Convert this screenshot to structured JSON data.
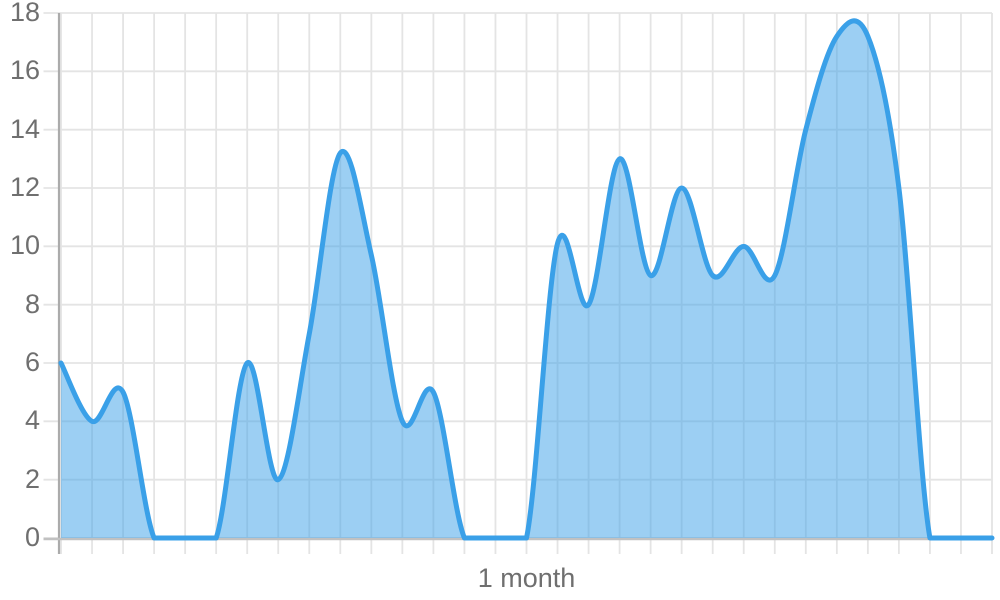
{
  "chart_data": {
    "type": "area",
    "spline": true,
    "title": "",
    "xlabel": "1 month",
    "ylabel": "",
    "x": [
      0,
      1,
      2,
      3,
      4,
      5,
      6,
      7,
      8,
      9,
      10,
      11,
      12,
      13,
      14,
      15,
      16,
      17,
      18,
      19,
      20,
      21,
      22,
      23,
      24,
      25,
      26,
      27,
      28,
      29,
      30
    ],
    "values": [
      6,
      4,
      5,
      0,
      0,
      0,
      6,
      2,
      7,
      13.2,
      9.7,
      4,
      5,
      0,
      0,
      0,
      10.1,
      8,
      13,
      9,
      12,
      9,
      10,
      9,
      14,
      17.2,
      17.2,
      12,
      0,
      0,
      0
    ],
    "yticks": [
      0,
      2,
      4,
      6,
      8,
      10,
      12,
      14,
      16,
      18
    ],
    "ylim": [
      0,
      18
    ],
    "xlim": [
      0,
      30
    ],
    "grid": true,
    "legend": false,
    "colors": {
      "line": "#3aa0e8",
      "fill_opacity": 0.5,
      "gridline": "#e4e4e4",
      "y_axis_line": "#ababab",
      "zero_line": "#c1c1c1",
      "axis_label": "#6f6f6f",
      "background": "#ffffff"
    }
  }
}
